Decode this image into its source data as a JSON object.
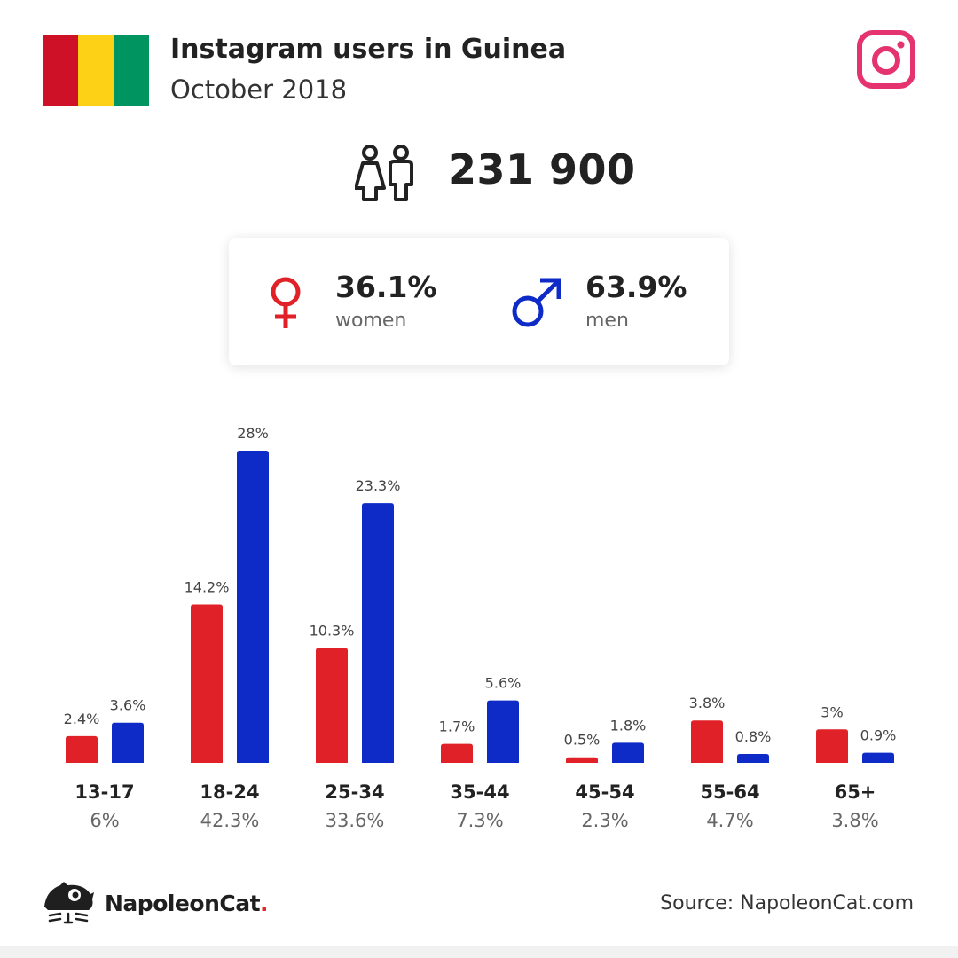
{
  "title": "Instagram users in Guinea",
  "subtitle": "October 2018",
  "flag_colors": [
    "#ce1126",
    "#fcd116",
    "#009460"
  ],
  "icons": {
    "platform": "instagram-icon",
    "users": "users-icon",
    "female": "female-symbol-icon",
    "male": "male-symbol-icon",
    "brand": "napoleoncat-logo-icon"
  },
  "total_users": "231 900",
  "gender": {
    "women": {
      "pct": "36.1%",
      "label": "women"
    },
    "men": {
      "pct": "63.9%",
      "label": "men"
    }
  },
  "colors": {
    "women": "#e02127",
    "men": "#0f2bc7",
    "instagram": "#e4336f"
  },
  "chart_data": {
    "type": "bar",
    "categories": [
      "13-17",
      "18-24",
      "25-34",
      "35-44",
      "45-54",
      "55-64",
      "65+"
    ],
    "category_totals": [
      "6%",
      "42.3%",
      "33.6%",
      "7.3%",
      "2.3%",
      "4.7%",
      "3.8%"
    ],
    "series": [
      {
        "key": "women",
        "values": [
          2.4,
          14.2,
          10.3,
          1.7,
          0.5,
          3.8,
          3.0
        ],
        "labels": [
          "2.4%",
          "14.2%",
          "10.3%",
          "1.7%",
          "0.5%",
          "3.8%",
          "3%"
        ],
        "color": "#e02127"
      },
      {
        "key": "men",
        "values": [
          3.6,
          28.0,
          23.3,
          5.6,
          1.8,
          0.8,
          0.9
        ],
        "labels": [
          "3.6%",
          "28%",
          "23.3%",
          "5.6%",
          "1.8%",
          "0.8%",
          "0.9%"
        ],
        "color": "#0f2bc7"
      }
    ],
    "ylim": [
      0,
      28
    ],
    "grid": false
  },
  "brand": {
    "name": "NapoleonCat",
    "dot": "."
  },
  "source": "Source: NapoleonCat.com"
}
